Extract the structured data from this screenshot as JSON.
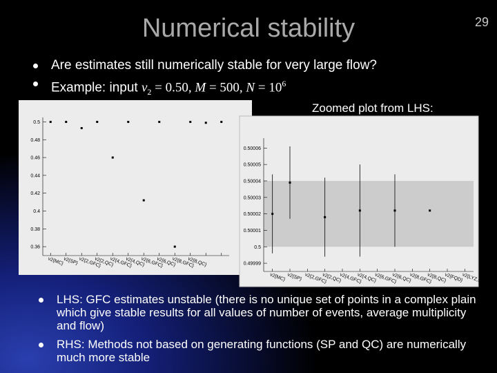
{
  "slide": {
    "title": "Numerical stability",
    "page_number": "29",
    "bullets_top": [
      {
        "parts": [
          "Are estimates still numerically stable for very large flow?"
        ]
      },
      {
        "parts": [
          "Example: input ",
          "v",
          "2",
          " = 0.50, ",
          "M",
          " = 500, ",
          "N",
          " = 10",
          "6"
        ]
      }
    ],
    "zoom_caption": "Zoomed plot from LHS:",
    "bullets_bottom": [
      "LHS: GFC estimates unstable (there is no unique set of points in a complex plain which give stable results for all values of number of events, average multiplicity and flow)",
      "RHS: Methods not based on generating functions (SP and QC) are numerically much more stable"
    ]
  },
  "chart_data": [
    {
      "type": "dot",
      "categories": [
        "v2{MC}",
        "v2{SP}",
        "v2{2,GFC}",
        "v2{2,QC}",
        "v2{4,GFC}",
        "v2{4,QC}",
        "v2{6,GFC}",
        "v2{6,QC}",
        "v2{8,GFC}",
        "v2{8,QC}",
        null,
        null
      ],
      "values": [
        0.5,
        0.5,
        0.493,
        0.5,
        0.46,
        0.5,
        0.412,
        0.5,
        0.36,
        0.5,
        0.499,
        0.5
      ],
      "color": "#000000",
      "ylim": [
        0.35,
        0.505
      ],
      "yticks": [
        0.36,
        0.38,
        0.4,
        0.42,
        0.44,
        0.46,
        0.48,
        0.5
      ]
    },
    {
      "type": "errorbar",
      "categories": [
        "v2{MC}",
        "v2{SP}",
        "v2{2,GFC}",
        "v2{2,QC}",
        "v2{4,GFC}",
        "v2{4,QC}",
        "v2{6,GFC}",
        "v2{6,QC}",
        "v2{8,GFC}",
        "v2{8,QC}",
        "v2{FQD}",
        "v2{LYZ,sum}"
      ],
      "values": [
        0.50002,
        0.500039,
        null,
        0.500018,
        null,
        0.500022,
        null,
        0.500022,
        null,
        0.500022,
        null,
        null
      ],
      "errors": [
        2.4e-05,
        2.2e-05,
        null,
        2.4e-05,
        null,
        2.8e-05,
        null,
        2.2e-05,
        null,
        null,
        null,
        null
      ],
      "band": [
        0.5,
        0.50004
      ],
      "band_color": "#cccccc",
      "color": "#000000",
      "ylim": [
        0.499985,
        0.500066
      ],
      "yticks": [
        0.49999,
        0.5,
        0.50001,
        0.50002,
        0.50003,
        0.50004,
        0.50005,
        0.50006
      ]
    }
  ]
}
